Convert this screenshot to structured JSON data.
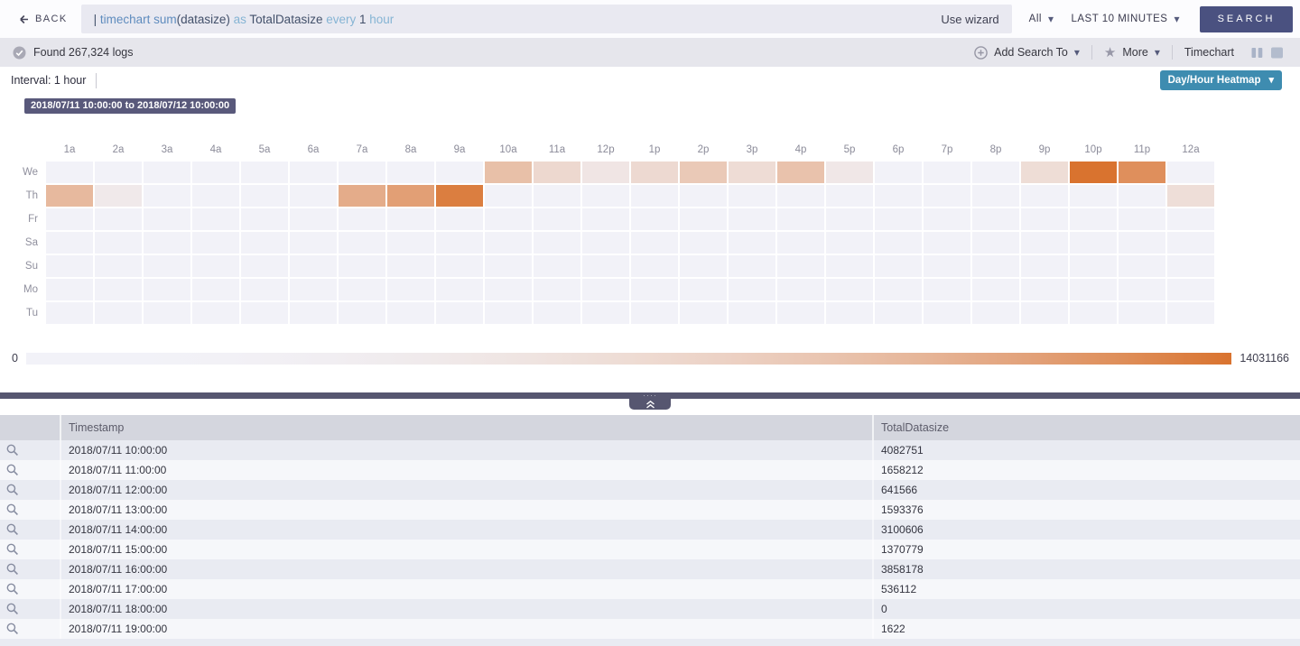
{
  "topbar": {
    "back_label": "BACK",
    "query_tokens": [
      {
        "text": "| ",
        "style": "dark"
      },
      {
        "text": "timechart ",
        "style": "blue"
      },
      {
        "text": "sum",
        "style": "blue"
      },
      {
        "text": "(datasize)",
        "style": "dark"
      },
      {
        "text": " as ",
        "style": "light"
      },
      {
        "text": "TotalDatasize",
        "style": "dark"
      },
      {
        "text": " every ",
        "style": "light"
      },
      {
        "text": "1",
        "style": "dark"
      },
      {
        "text": " hour",
        "style": "light"
      }
    ],
    "use_wizard_label": "Use wizard",
    "scope_value": "All",
    "time_range_value": "LAST 10 MINUTES",
    "search_label": "SEARCH"
  },
  "toolbar": {
    "status": "Found 267,324 logs",
    "add_search_to_label": "Add Search To",
    "more_label": "More",
    "view_label": "Timechart"
  },
  "chart_controls": {
    "interval_label": "Interval: 1 hour",
    "view_selector_label": "Day/Hour Heatmap"
  },
  "chart_data": {
    "type": "heatmap",
    "title": "2018/07/11 10:00:00 to 2018/07/12 10:00:00",
    "series_name": "TotalDatasize",
    "x_labels": [
      "1a",
      "2a",
      "3a",
      "4a",
      "5a",
      "6a",
      "7a",
      "8a",
      "9a",
      "10a",
      "11a",
      "12p",
      "1p",
      "2p",
      "3p",
      "4p",
      "5p",
      "6p",
      "7p",
      "8p",
      "9p",
      "10p",
      "11p",
      "12a"
    ],
    "y_labels": [
      "We",
      "Th",
      "Fr",
      "Sa",
      "Su",
      "Mo",
      "Tu"
    ],
    "values": [
      [
        null,
        null,
        null,
        null,
        null,
        null,
        null,
        null,
        null,
        4082751,
        1658212,
        641566,
        1593376,
        3100606,
        1370779,
        3858178,
        536112,
        0,
        1622,
        0,
        1300000,
        14031166,
        10000000,
        null
      ],
      [
        4800000,
        400000,
        null,
        null,
        null,
        null,
        6300000,
        7900000,
        12500000,
        null,
        null,
        null,
        null,
        null,
        null,
        null,
        null,
        null,
        null,
        null,
        null,
        null,
        null,
        1200000
      ],
      [
        null,
        null,
        null,
        null,
        null,
        null,
        null,
        null,
        null,
        null,
        null,
        null,
        null,
        null,
        null,
        null,
        null,
        null,
        null,
        null,
        null,
        null,
        null,
        null
      ],
      [
        null,
        null,
        null,
        null,
        null,
        null,
        null,
        null,
        null,
        null,
        null,
        null,
        null,
        null,
        null,
        null,
        null,
        null,
        null,
        null,
        null,
        null,
        null,
        null
      ],
      [
        null,
        null,
        null,
        null,
        null,
        null,
        null,
        null,
        null,
        null,
        null,
        null,
        null,
        null,
        null,
        null,
        null,
        null,
        null,
        null,
        null,
        null,
        null,
        null
      ],
      [
        null,
        null,
        null,
        null,
        null,
        null,
        null,
        null,
        null,
        null,
        null,
        null,
        null,
        null,
        null,
        null,
        null,
        null,
        null,
        null,
        null,
        null,
        null,
        null
      ],
      [
        null,
        null,
        null,
        null,
        null,
        null,
        null,
        null,
        null,
        null,
        null,
        null,
        null,
        null,
        null,
        null,
        null,
        null,
        null,
        null,
        null,
        null,
        null,
        null
      ]
    ],
    "scale": {
      "min": 0,
      "max": 14031166,
      "min_label": "0",
      "max_label": "14031166",
      "base_color": "#f2f2f8",
      "max_color": "#d9732f"
    }
  },
  "table": {
    "columns": [
      "Timestamp",
      "TotalDatasize"
    ],
    "rows": [
      {
        "timestamp": "2018/07/11 10:00:00",
        "value": "4082751"
      },
      {
        "timestamp": "2018/07/11 11:00:00",
        "value": "1658212"
      },
      {
        "timestamp": "2018/07/11 12:00:00",
        "value": "641566"
      },
      {
        "timestamp": "2018/07/11 13:00:00",
        "value": "1593376"
      },
      {
        "timestamp": "2018/07/11 14:00:00",
        "value": "3100606"
      },
      {
        "timestamp": "2018/07/11 15:00:00",
        "value": "1370779"
      },
      {
        "timestamp": "2018/07/11 16:00:00",
        "value": "3858178"
      },
      {
        "timestamp": "2018/07/11 17:00:00",
        "value": "536112"
      },
      {
        "timestamp": "2018/07/11 18:00:00",
        "value": "0"
      },
      {
        "timestamp": "2018/07/11 19:00:00",
        "value": "1622"
      }
    ]
  }
}
